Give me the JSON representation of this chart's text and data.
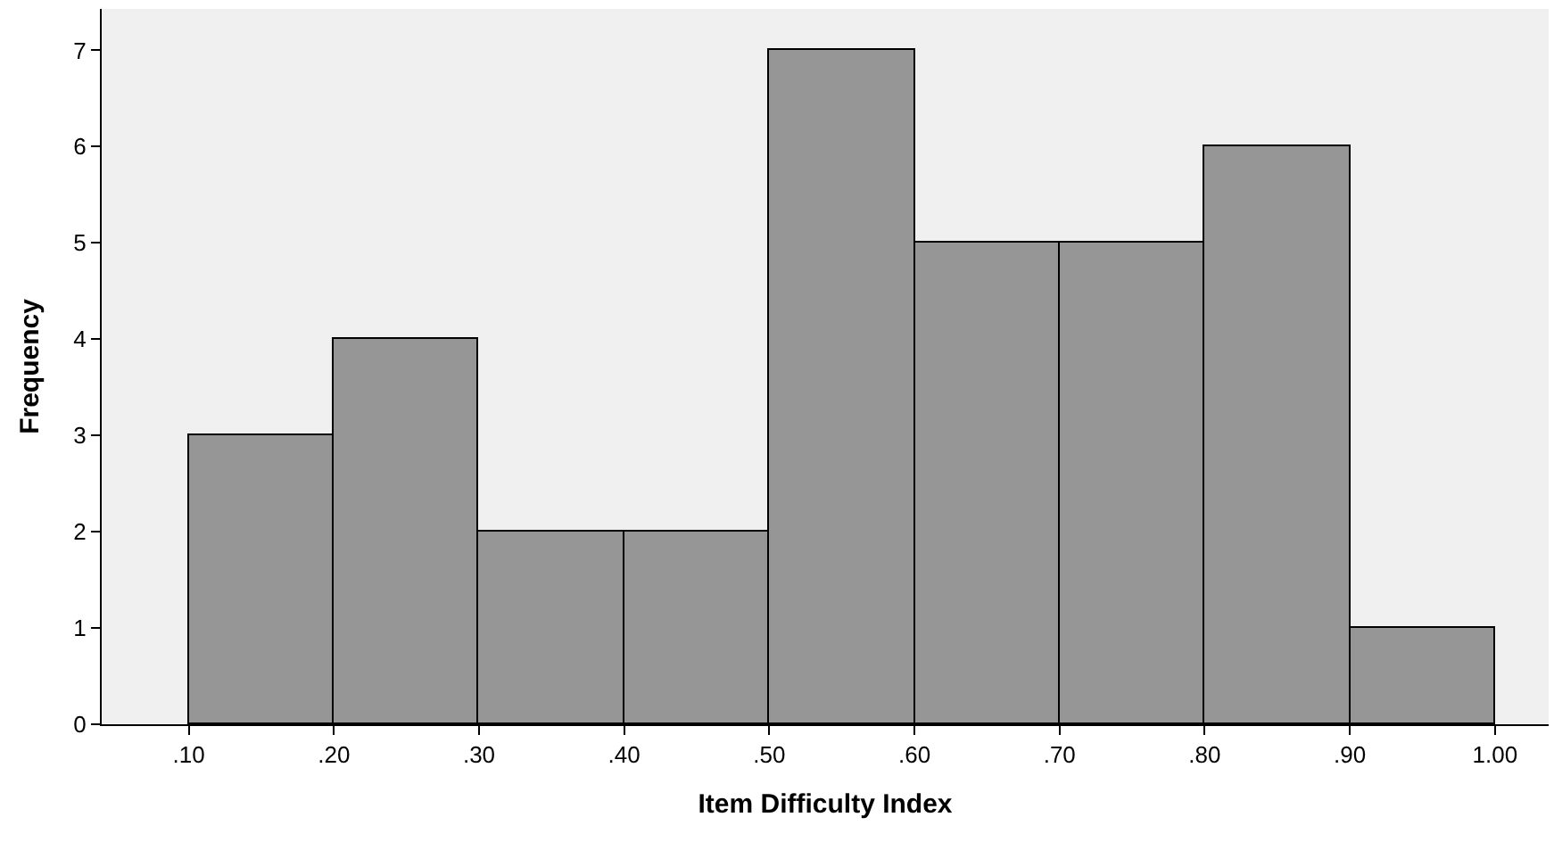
{
  "chart_data": {
    "type": "histogram",
    "xlabel": "Item Difficulty Index",
    "ylabel": "Frequency",
    "bins": [
      0.1,
      0.2,
      0.3,
      0.4,
      0.5,
      0.6,
      0.7,
      0.8,
      0.9,
      1.0
    ],
    "values": [
      3,
      4,
      2,
      2,
      7,
      5,
      5,
      6,
      1
    ],
    "color": "#969696",
    "xlim": [
      0.04,
      1.037
    ],
    "ylim": [
      0,
      7.43
    ],
    "xticks": [
      {
        "value": 0.1,
        "label": ".10"
      },
      {
        "value": 0.2,
        "label": ".20"
      },
      {
        "value": 0.3,
        "label": ".30"
      },
      {
        "value": 0.4,
        "label": ".40"
      },
      {
        "value": 0.5,
        "label": ".50"
      },
      {
        "value": 0.6,
        "label": ".60"
      },
      {
        "value": 0.7,
        "label": ".70"
      },
      {
        "value": 0.8,
        "label": ".80"
      },
      {
        "value": 0.9,
        "label": ".90"
      },
      {
        "value": 1.0,
        "label": "1.00"
      }
    ],
    "yticks": [
      0,
      1,
      2,
      3,
      4,
      5,
      6,
      7
    ],
    "grid": false
  }
}
